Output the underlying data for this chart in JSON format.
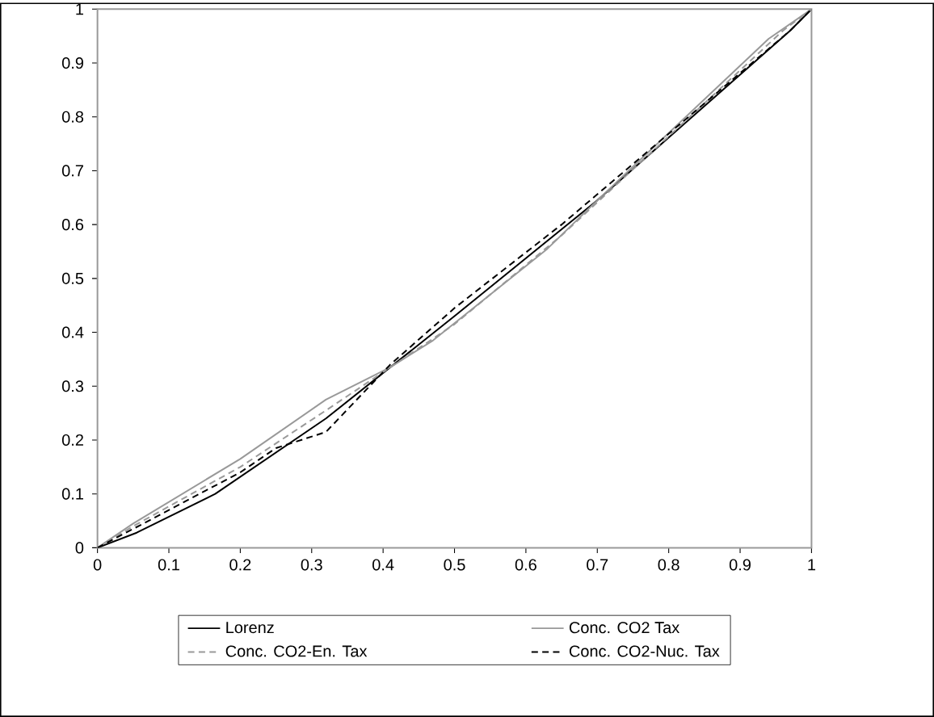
{
  "chart_data": {
    "type": "line",
    "xlim": [
      0,
      1
    ],
    "ylim": [
      0,
      1
    ],
    "xticks": [
      0,
      0.1,
      0.2,
      0.3,
      0.4,
      0.5,
      0.6,
      0.7,
      0.8,
      0.9,
      1
    ],
    "yticks": [
      0,
      0.1,
      0.2,
      0.3,
      0.4,
      0.5,
      0.6,
      0.7,
      0.8,
      0.9,
      1
    ],
    "grid": false,
    "legend": "bottom",
    "marker": "none",
    "series": [
      {
        "name": "Lorenz",
        "color": "#000000",
        "line_style": "solid",
        "x": [
          0,
          0.055,
          0.165,
          0.32,
          0.41,
          0.5,
          0.7,
          0.97,
          1
        ],
        "values": [
          0,
          0.028,
          0.1,
          0.24,
          0.335,
          0.43,
          0.645,
          0.96,
          1
        ]
      },
      {
        "name": "Conc. CO2 Tax",
        "color": "#999999",
        "line_style": "solid",
        "x": [
          0,
          0.05,
          0.2,
          0.32,
          0.41,
          0.47,
          0.63,
          0.7,
          0.94,
          1
        ],
        "values": [
          0,
          0.045,
          0.165,
          0.275,
          0.335,
          0.385,
          0.555,
          0.645,
          0.945,
          1
        ]
      },
      {
        "name": "Conc. CO2-En. Tax",
        "color": "#999999",
        "line_style": "dashed",
        "x": [
          0,
          0.05,
          0.2,
          0.32,
          0.41,
          0.5,
          0.65,
          0.96,
          1
        ],
        "values": [
          0,
          0.04,
          0.15,
          0.255,
          0.335,
          0.415,
          0.58,
          0.96,
          1
        ]
      },
      {
        "name": "Conc.  CO2-Nuc. Tax",
        "color": "#000000",
        "line_style": "dashed",
        "x": [
          0,
          0.05,
          0.2,
          0.25,
          0.32,
          0.41,
          0.5,
          0.65,
          0.97,
          1
        ],
        "values": [
          0,
          0.035,
          0.14,
          0.185,
          0.215,
          0.34,
          0.445,
          0.6,
          0.96,
          1
        ]
      }
    ]
  }
}
